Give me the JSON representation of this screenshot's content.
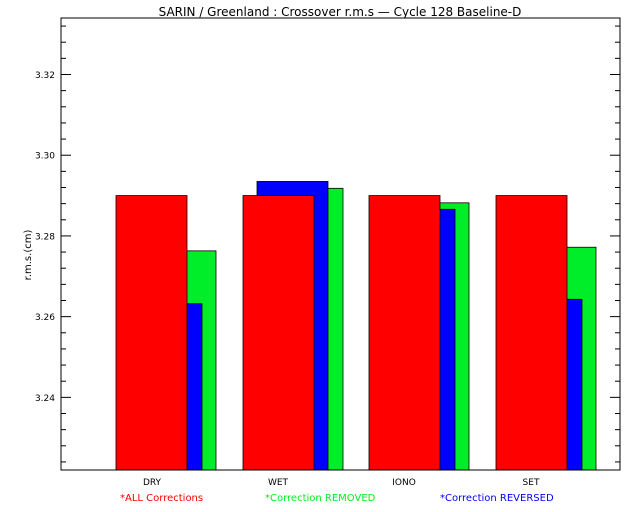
{
  "chart_data": {
    "type": "bar",
    "title": "SARIN / Greenland : Crossover r.m.s — Cycle 128 Baseline-D",
    "xlabel": "",
    "ylabel": "r.m.s.(cm)",
    "ylim": [
      3.222,
      3.334
    ],
    "yticks": [
      "3.24",
      "3.26",
      "3.28",
      "3.30",
      "3.32"
    ],
    "categories": [
      "DRY",
      "WET",
      "IONO",
      "SET"
    ],
    "series": [
      {
        "name": "*ALL Corrections",
        "color": "#ff0000",
        "values": [
          3.29,
          3.29,
          3.29,
          3.29
        ]
      },
      {
        "name": "*Correction REMOVED",
        "color": "#00ee2a",
        "values": [
          3.2763,
          3.2918,
          3.2882,
          3.2772
        ]
      },
      {
        "name": "*Correction REVERSED",
        "color": "#0000ff",
        "values": [
          3.2632,
          3.2935,
          3.2866,
          3.2643
        ]
      }
    ],
    "legend_position": "bottom",
    "grid": false
  }
}
